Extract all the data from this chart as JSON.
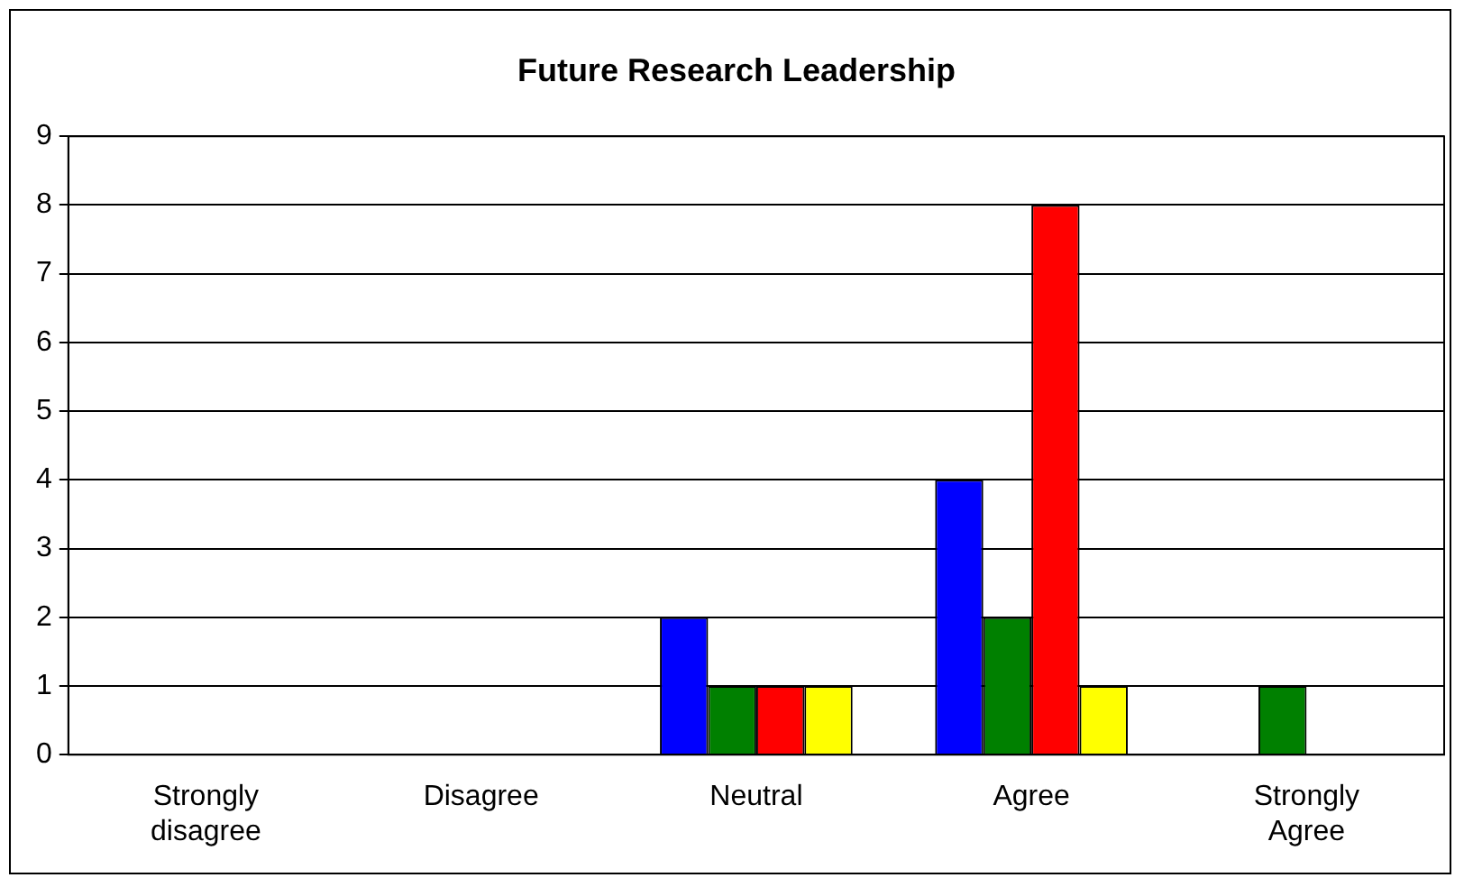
{
  "chart_data": {
    "type": "bar",
    "title": "Future Research Leadership",
    "categories": [
      "Strongly disagree",
      "Disagree",
      "Neutral",
      "Agree",
      "Strongly Agree"
    ],
    "series": [
      {
        "color": "#0000ff",
        "values": [
          0,
          0,
          2,
          4,
          0
        ]
      },
      {
        "color": "#008000",
        "values": [
          0,
          0,
          1,
          2,
          1
        ]
      },
      {
        "color": "#ff0000",
        "values": [
          0,
          0,
          1,
          8,
          0
        ]
      },
      {
        "color": "#ffff00",
        "values": [
          0,
          0,
          1,
          1,
          0
        ]
      }
    ],
    "ylim": [
      0,
      9
    ],
    "yticks": [
      0,
      1,
      2,
      3,
      4,
      5,
      6,
      7,
      8,
      9
    ],
    "grid": "y",
    "legend": false
  }
}
